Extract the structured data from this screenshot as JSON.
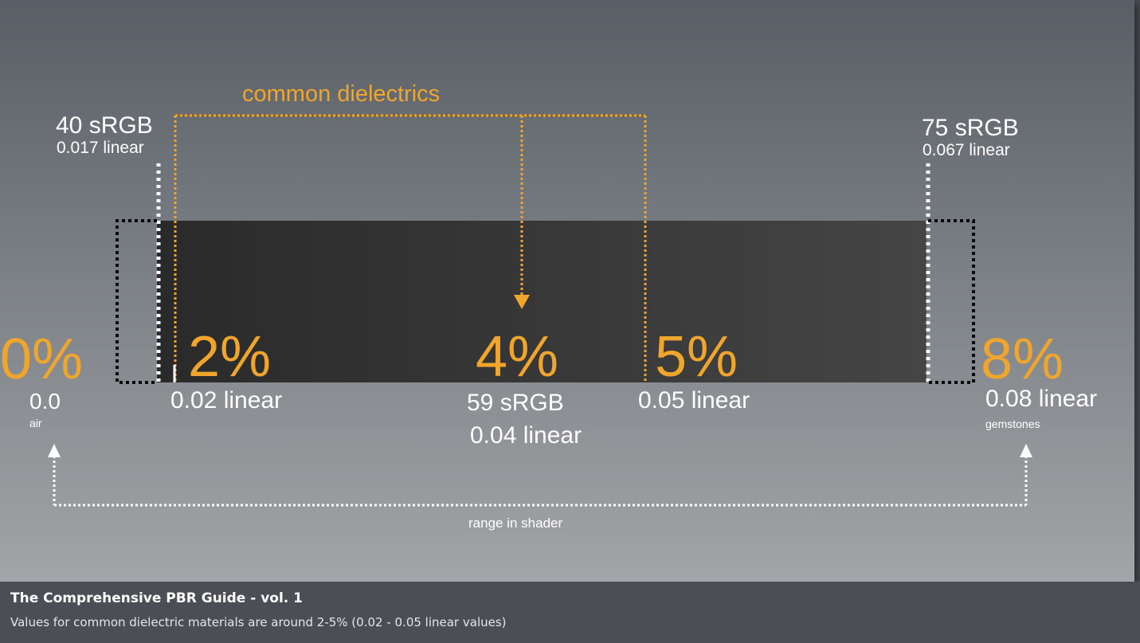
{
  "header": {
    "label": "common dielectrics"
  },
  "markers": {
    "left_srgb": "40 sRGB",
    "left_linear": "0.017 linear",
    "right_srgb": "75 sRGB",
    "right_linear": "0.067 linear"
  },
  "values": [
    {
      "pct": "0%",
      "linear": "0.0",
      "note": "air"
    },
    {
      "pct": "2%",
      "linear": "0.02 linear"
    },
    {
      "pct": "4%",
      "srgb": "59 sRGB",
      "linear": "0.04 linear"
    },
    {
      "pct": "5%",
      "linear": "0.05 linear"
    },
    {
      "pct": "8%",
      "linear": "0.08 linear",
      "note": "gemstones"
    }
  ],
  "range_label": "range in shader",
  "caption": {
    "title": "The Comprehensive PBR Guide - vol. 1",
    "subtitle": "Values for common dielectric materials are around 2-5% (0.02 - 0.05 linear values)"
  },
  "colors": {
    "accent": "#f0a52c",
    "bar": "#333333",
    "text": "#ffffff"
  }
}
